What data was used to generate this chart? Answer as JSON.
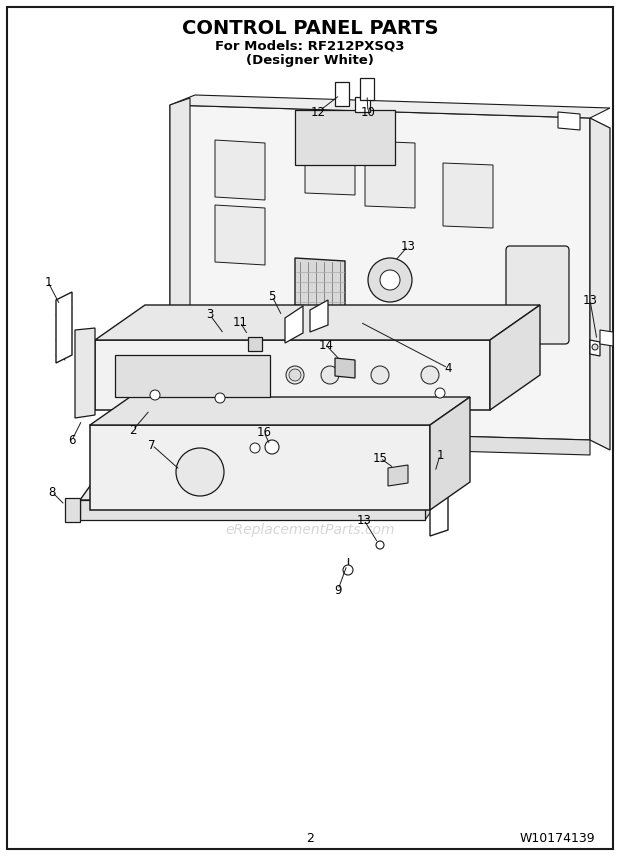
{
  "title": "CONTROL PANEL PARTS",
  "subtitle_line1": "For Models: RF212PXSQ3",
  "subtitle_line2": "(Designer White)",
  "page_number": "2",
  "doc_number": "W10174139",
  "background_color": "#ffffff",
  "border_color": "#000000",
  "text_color": "#000000",
  "watermark": "eReplacementParts.com",
  "figsize": [
    6.2,
    8.56
  ],
  "dpi": 100,
  "title_fontsize": 15,
  "subtitle_fontsize": 9.5,
  "footer_fontsize": 9
}
